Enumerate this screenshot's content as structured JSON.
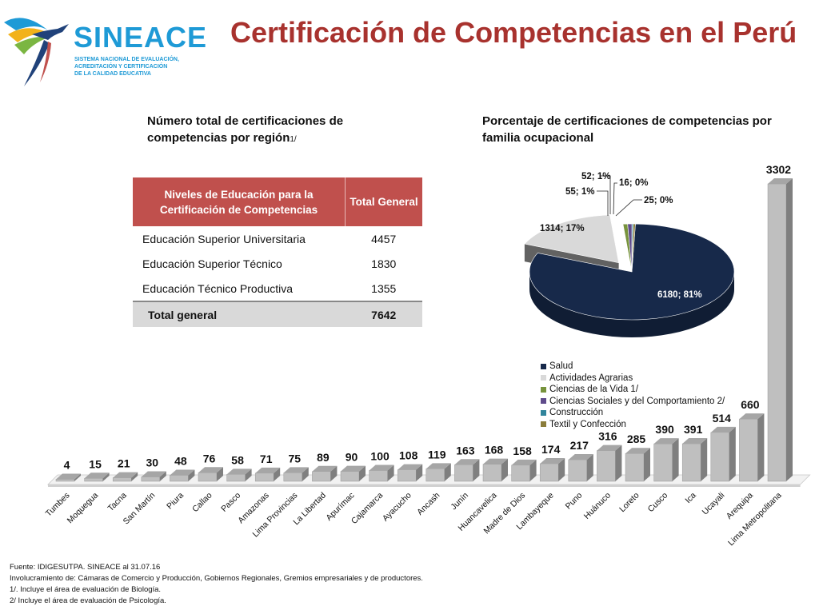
{
  "header": {
    "logo_name": "SINEACE",
    "logo_subtitle_lines": [
      "SISTEMA NACIONAL DE EVALUACIÓN,",
      "ACREDITACIÓN Y CERTIFICACIÓN",
      "DE LA CALIDAD EDUCATIVA"
    ],
    "title": "Certificación de Competencias en el Perú"
  },
  "left_panel": {
    "subtitle": "Número total de certificaciones de competencias por región",
    "subtitle_note": "1/"
  },
  "right_panel": {
    "subtitle": "Porcentaje de certificaciones de competencias por familia ocupacional"
  },
  "chart_data": [
    {
      "type": "table",
      "columns": [
        "Niveles de Educación para la Certificación de Competencias",
        "Total General"
      ],
      "rows": [
        [
          "Educación Superior Universitaria",
          "4457"
        ],
        [
          "Educación Superior Técnico",
          "1830"
        ],
        [
          "Educación Técnico Productiva",
          "1355"
        ]
      ],
      "total": [
        "Total general",
        "7642"
      ]
    },
    {
      "type": "pie",
      "slices": [
        {
          "name": "Salud",
          "value": 6180,
          "label": "6180; 81%",
          "color": "#17294a"
        },
        {
          "name": "Actividades Agrarias",
          "value": 1314,
          "label": "1314; 17%",
          "color": "#d9d9d9"
        },
        {
          "name": "Ciencias de la Vida 1/",
          "value": 55,
          "label": "55; 1%",
          "color": "#77933c"
        },
        {
          "name": "Ciencias Sociales y del Comportamiento 2/",
          "value": 52,
          "label": "52; 1%",
          "color": "#5f4b8b"
        },
        {
          "name": "Construcción",
          "value": 16,
          "label": "16; 0%",
          "color": "#31859c"
        },
        {
          "name": "Textil y Confección",
          "value": 25,
          "label": "25; 0%",
          "color": "#8b7d3a"
        }
      ],
      "legend": "bottom-left"
    },
    {
      "type": "bar",
      "categories": [
        "Tumbes",
        "Moquegua",
        "Tacna",
        "San Martín",
        "Piura",
        "Callao",
        "Pasco",
        "Amazonas",
        "Lima Provincias",
        "La Libertad",
        "Apurímac",
        "Cajamarca",
        "Ayacucho",
        "Ancash",
        "Junín",
        "Huancavelica",
        "Madre de Dios",
        "Lambayeque",
        "Puno",
        "Huánuco",
        "Loreto",
        "Cusco",
        "Ica",
        "Ucayali",
        "Arequipa",
        "Lima Metropolitana"
      ],
      "values": [
        4,
        15,
        21,
        30,
        48,
        76,
        58,
        71,
        75,
        89,
        90,
        100,
        108,
        119,
        163,
        168,
        158,
        174,
        217,
        316,
        285,
        390,
        391,
        514,
        660,
        3302
      ],
      "ylim": [
        0,
        3302
      ],
      "scale": "broken",
      "colors": {
        "front": "#bfbfbf",
        "side": "#7f7f7f",
        "top": "#a6a6a6"
      }
    }
  ],
  "footer": {
    "lines": [
      "Fuente: IDIGESUTPA. SINEACE al  31.07.16",
      "Involucramiento de:  Cámaras de Comercio y Producción, Gobiernos Regionales, Gremios empresariales y de productores.",
      "1/. Incluye  el área de evaluación de Biología.",
      "2/ Incluye  el área  de evaluación de Psicología."
    ]
  }
}
